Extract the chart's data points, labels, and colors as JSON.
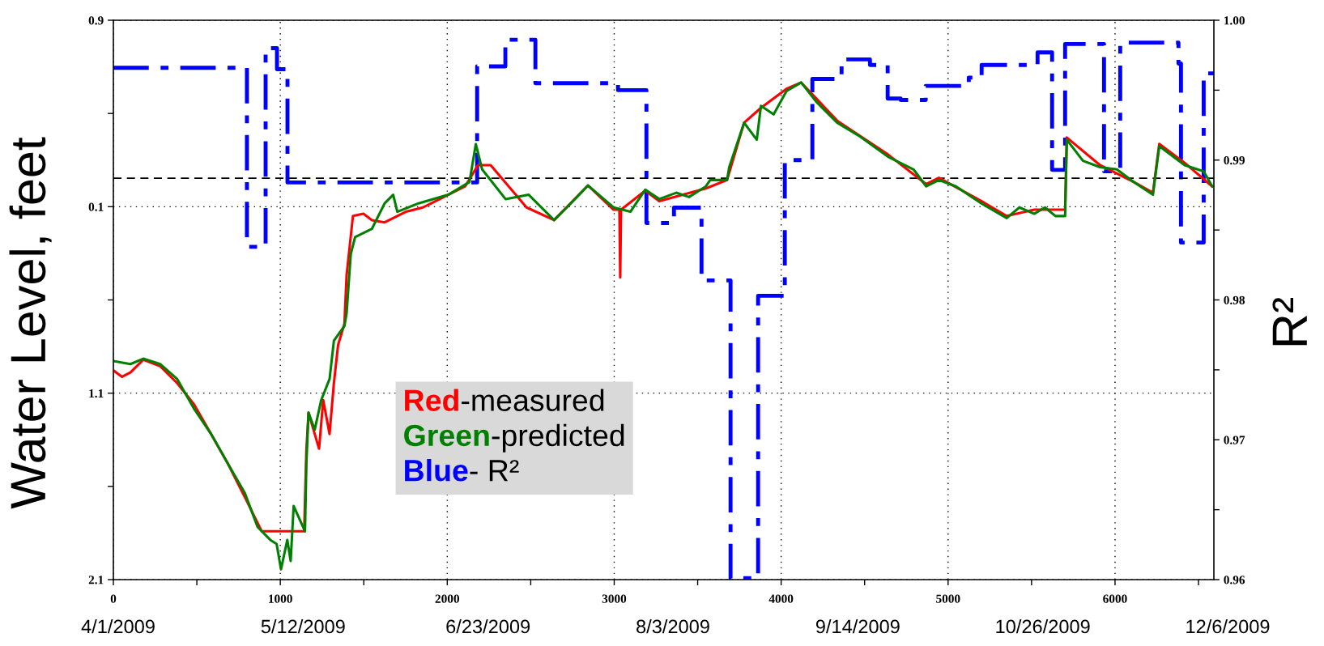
{
  "chart_data": {
    "type": "line",
    "ylabel": "Water Level, feet",
    "y2label": "R²",
    "xlim": [
      0,
      6592
    ],
    "xticks": [
      0,
      {
        "value": 500,
        "label": null
      },
      1000,
      {
        "value": 1500,
        "label": null
      },
      2000,
      {
        "value": 2500,
        "label": null
      },
      3000,
      {
        "value": 3500,
        "label": null
      },
      4000,
      {
        "value": 4500,
        "label": null
      },
      5000,
      {
        "value": 5500,
        "label": null
      },
      6000,
      {
        "value": 6500,
        "label": null
      }
    ],
    "ylim": [
      2.1,
      -0.9
    ],
    "yticks": [
      {
        "value": -0.9,
        "label": "0.9"
      },
      {
        "value": -0.4,
        "label": null
      },
      0.1,
      {
        "value": 0.6,
        "label": null
      },
      1.1,
      {
        "value": 1.6,
        "label": null
      },
      2.1
    ],
    "y2lim": [
      0.96,
      1.0
    ],
    "y2ticks": [
      0.96,
      {
        "value": 0.965,
        "label": null
      },
      0.97,
      {
        "value": 0.975,
        "label": null
      },
      0.98,
      {
        "value": 0.985,
        "label": null
      },
      0.99,
      {
        "value": 0.995,
        "label": null
      },
      {
        "value": 1.0,
        "label": "1.00"
      }
    ],
    "grid": true,
    "legend": "bottom",
    "marker": "none",
    "ref_lines": [
      {
        "axis": "y2",
        "value": 0.9887,
        "color": "#000000",
        "line_style": "dashed"
      }
    ],
    "annotations": [
      "4/1/2009",
      "5/12/2009",
      "6/23/2009",
      "8/3/2009",
      "9/14/2009",
      "10/26/2009",
      "12/6/2009"
    ],
    "series": [
      {
        "name": "Red-measured",
        "color": "#ff0000",
        "line_style": "solid",
        "x": [
          0,
          52,
          102,
          179,
          280,
          382,
          483,
          585,
          686,
          788,
          889,
          1143,
          1156,
          1169,
          1232,
          1257,
          1295,
          1321,
          1346,
          1384,
          1397,
          1435,
          1498,
          1549,
          1625,
          1752,
          1854,
          1955,
          2107,
          2184,
          2260,
          2475,
          2640,
          2843,
          2996,
          3031,
          3036,
          3041,
          3186,
          3270,
          3549,
          3676,
          3778,
          3879,
          4032,
          4120,
          4336,
          4640,
          4869,
          4945,
          5199,
          5351,
          5516,
          5701,
          5711,
          5910,
          6113,
          6227,
          6265,
          6417,
          6582
        ],
        "values": [
          0.978,
          1.012,
          0.989,
          0.921,
          0.955,
          1.046,
          1.16,
          1.319,
          1.478,
          1.659,
          1.841,
          1.841,
          1.41,
          1.205,
          1.398,
          1.137,
          1.319,
          1.046,
          0.842,
          0.728,
          0.468,
          0.15,
          0.138,
          0.172,
          0.184,
          0.127,
          0.104,
          0.059,
          -0.009,
          -0.123,
          -0.123,
          0.104,
          0.172,
          -0.014,
          0.116,
          0.116,
          0.479,
          0.116,
          0.014,
          0.07,
          0.002,
          -0.043,
          -0.35,
          -0.43,
          -0.532,
          -0.566,
          -0.361,
          -0.18,
          -0.021,
          -0.055,
          0.07,
          0.15,
          0.116,
          0.116,
          -0.271,
          -0.123,
          -0.032,
          0.025,
          -0.237,
          -0.135,
          -0.009
        ]
      },
      {
        "name": "Green-predicted",
        "color": "#008000",
        "line_style": "solid",
        "x": [
          0,
          102,
          179,
          280,
          382,
          483,
          585,
          686,
          788,
          864,
          940,
          978,
          1004,
          1042,
          1062,
          1080,
          1148,
          1156,
          1169,
          1206,
          1245,
          1295,
          1321,
          1384,
          1397,
          1422,
          1448,
          1549,
          1625,
          1676,
          1701,
          1828,
          2006,
          2133,
          2171,
          2209,
          2349,
          2488,
          2640,
          2716,
          2843,
          2996,
          3097,
          3186,
          3270,
          3372,
          3448,
          3549,
          3575,
          3676,
          3689,
          3778,
          3854,
          3879,
          3955,
          4032,
          4120,
          4209,
          4336,
          4463,
          4640,
          4793,
          4869,
          4945,
          5047,
          5199,
          5351,
          5427,
          5516,
          5580,
          5643,
          5701,
          5711,
          5808,
          5910,
          6011,
          6113,
          6227,
          6265,
          6417,
          6531,
          6582
        ],
        "values": [
          0.928,
          0.944,
          0.915,
          0.944,
          1.024,
          1.183,
          1.319,
          1.478,
          1.637,
          1.818,
          1.887,
          1.909,
          2.045,
          1.887,
          2.0,
          1.705,
          1.841,
          1.478,
          1.205,
          1.296,
          1.137,
          1.024,
          0.819,
          0.74,
          0.672,
          0.354,
          0.263,
          0.218,
          0.082,
          0.036,
          0.127,
          0.082,
          0.036,
          -0.032,
          -0.236,
          -0.1,
          0.059,
          0.036,
          0.172,
          0.104,
          -0.014,
          0.104,
          0.127,
          0.009,
          0.059,
          0.025,
          0.048,
          -0.009,
          -0.043,
          -0.043,
          -0.112,
          -0.35,
          -0.259,
          -0.441,
          -0.395,
          -0.52,
          -0.566,
          -0.464,
          -0.35,
          -0.282,
          -0.168,
          -0.1,
          -0.009,
          -0.043,
          -0.009,
          0.082,
          0.161,
          0.104,
          0.138,
          0.104,
          0.15,
          0.15,
          -0.259,
          -0.146,
          -0.112,
          -0.1,
          -0.032,
          0.036,
          -0.225,
          -0.123,
          -0.089,
          -0.009
        ]
      },
      {
        "name": "Blue- R²",
        "color": "#0000ff",
        "type": "step",
        "axis": "y2",
        "line_style": "dashed",
        "x": [
          0,
          800,
          912,
          980,
          1043,
          2179,
          2348,
          2528,
          3023,
          3193,
          3358,
          3523,
          3697,
          3862,
          4022,
          4187,
          4362,
          4532,
          4638,
          4716,
          4866,
          5124,
          5201,
          5536,
          5623,
          5701,
          5934,
          6031,
          6380,
          6395,
          6531,
          6592
        ],
        "values": [
          0.9966,
          0.9838,
          0.998,
          0.9965,
          0.9884,
          0.9967,
          0.9986,
          0.9955,
          0.995,
          0.9855,
          0.9866,
          0.9814,
          0.9601,
          0.9803,
          0.99,
          0.9958,
          0.9972,
          0.9968,
          0.9944,
          0.9943,
          0.9953,
          0.9959,
          0.9968,
          0.9977,
          0.9893,
          0.9983,
          0.9892,
          0.9984,
          0.9969,
          0.9841,
          0.9962,
          0.9962
        ]
      }
    ]
  }
}
